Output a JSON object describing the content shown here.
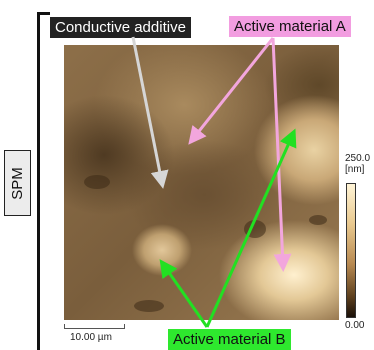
{
  "labels": {
    "conductive_additive": "Conductive additive",
    "active_material_a": "Active material A",
    "active_material_b": "Active material B",
    "method": "SPM"
  },
  "scale_bar": {
    "label": "10.00 µm"
  },
  "color_scale": {
    "max_label": "250.0",
    "unit_label": "[nm]",
    "min_label": "0.00"
  },
  "colors": {
    "conductive_additive_arrow": "#d6d6d6",
    "active_material_a_arrow": "#f2a6dd",
    "active_material_b_arrow": "#22e022",
    "conductive_additive_tag": "#222222",
    "active_material_a_tag": "#f29de0",
    "active_material_b_tag": "#2ee82e"
  },
  "icons": {
    "arrow": "arrow-icon"
  }
}
